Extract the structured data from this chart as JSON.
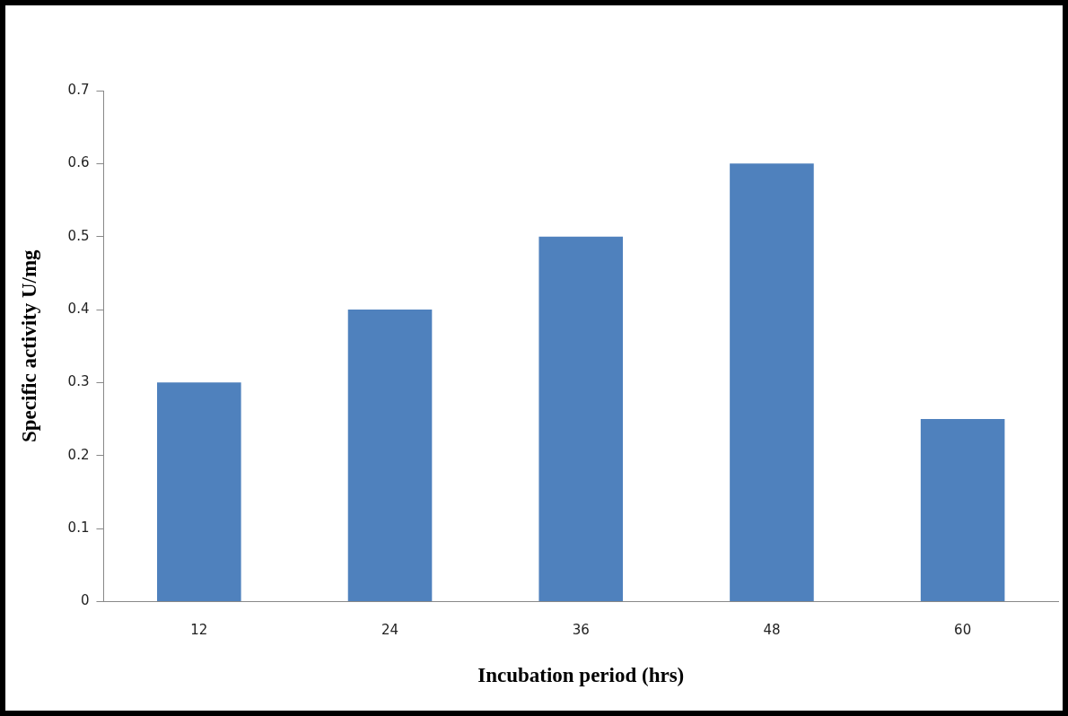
{
  "chart_data": {
    "type": "bar",
    "xlabel": "Incubation period (hrs)",
    "ylabel": "Specific activity U/mg",
    "categories": [
      "12",
      "24",
      "36",
      "48",
      "60"
    ],
    "values": [
      0.3,
      0.4,
      0.5,
      0.6,
      0.25
    ],
    "color": "#4f81bd",
    "ylim": [
      0,
      0.7
    ],
    "yticks": [
      0,
      0.1,
      0.2,
      0.3,
      0.4,
      0.5,
      0.6,
      0.7
    ],
    "grid": false,
    "legend": false
  }
}
